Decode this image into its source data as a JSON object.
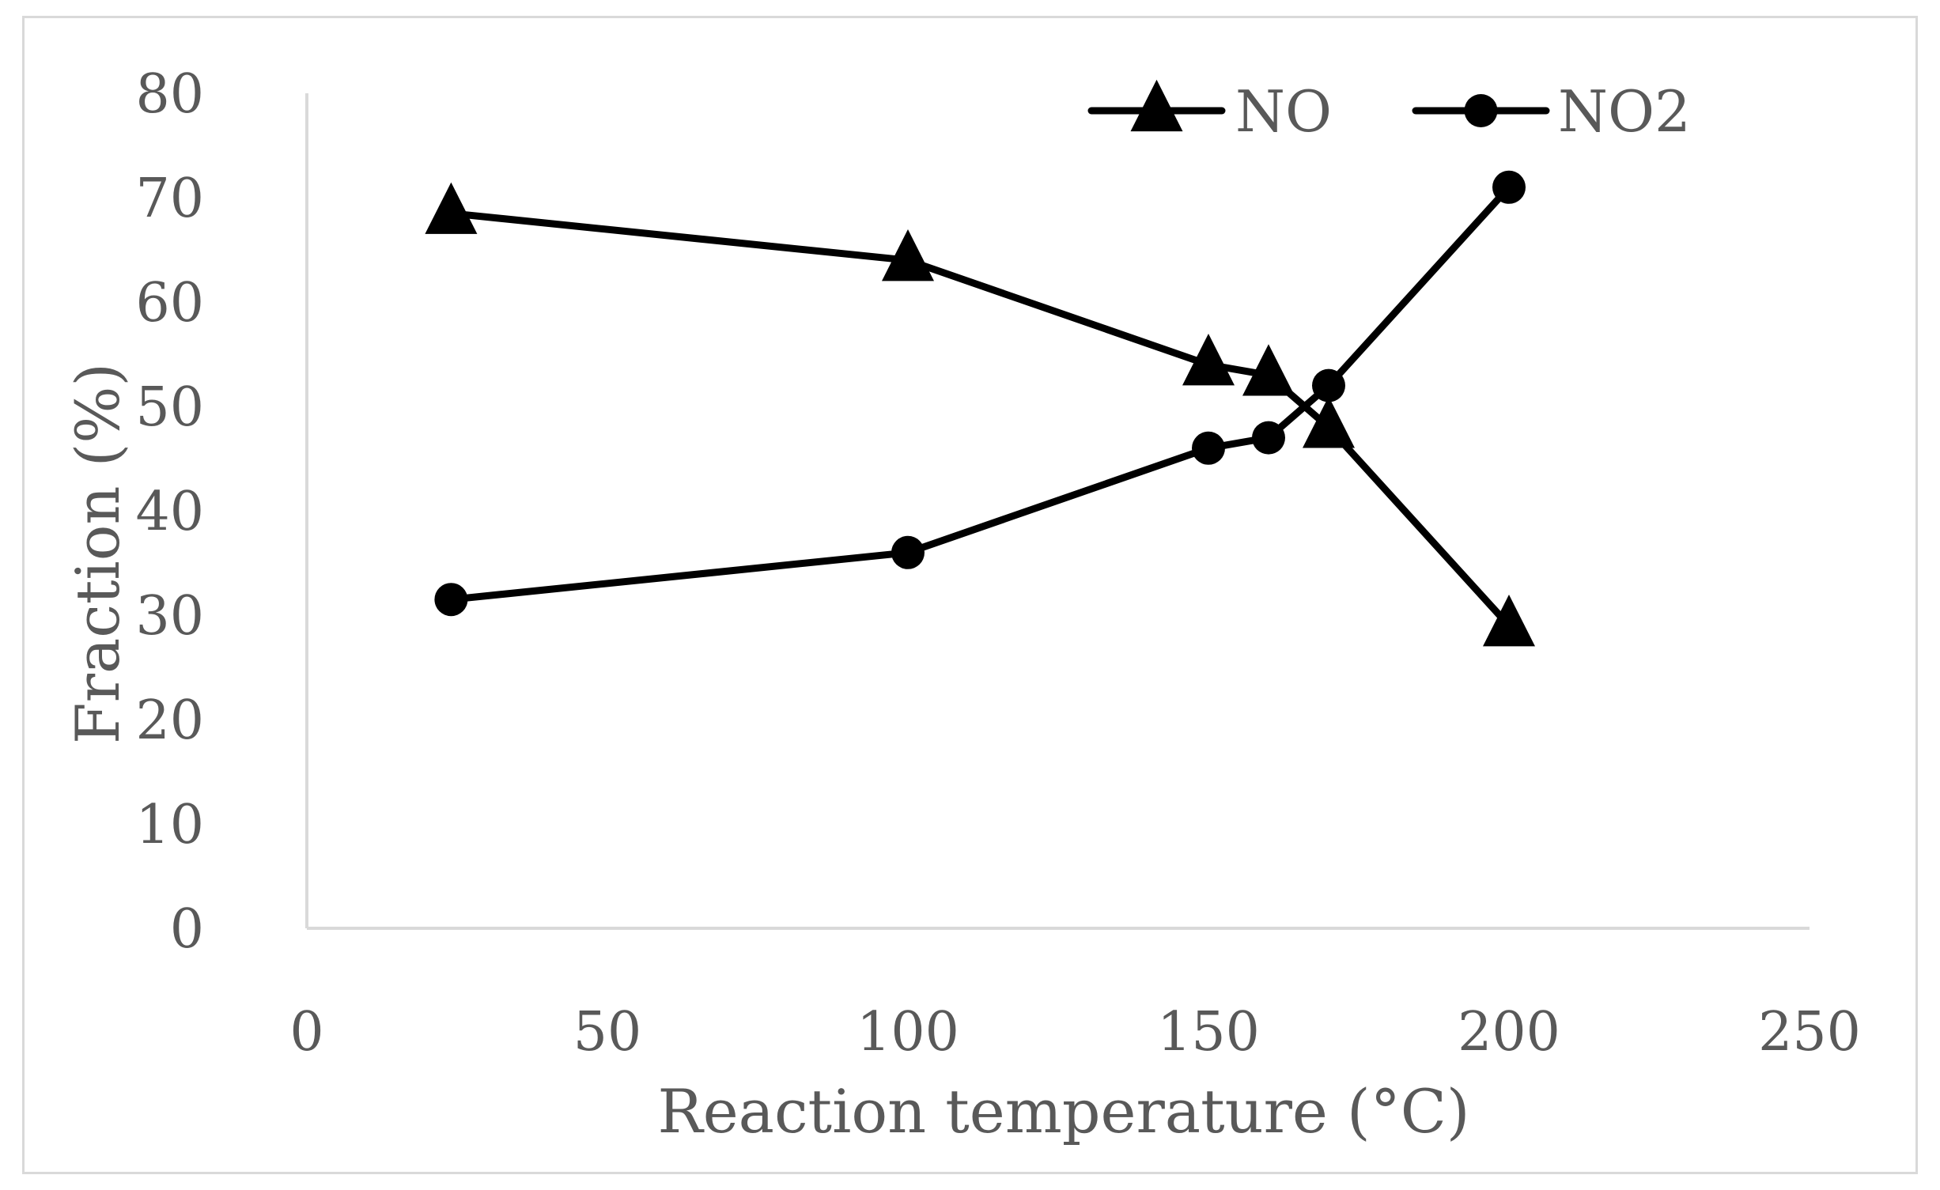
{
  "chart_data": {
    "type": "line",
    "title": "",
    "xlabel": "Reaction temperature (°C)",
    "ylabel": "Fraction (%)",
    "xlim": [
      0,
      250
    ],
    "ylim": [
      0,
      80
    ],
    "xticks": [
      0,
      50,
      100,
      150,
      200,
      250
    ],
    "yticks": [
      0,
      10,
      20,
      30,
      40,
      50,
      60,
      70,
      80
    ],
    "grid": false,
    "legend_position": "top-right",
    "series": [
      {
        "name": "NO",
        "marker": "triangle",
        "color": "#000000",
        "x": [
          24,
          100,
          150,
          160,
          170,
          200
        ],
        "values": [
          68.5,
          64,
          54,
          53,
          48,
          29
        ]
      },
      {
        "name": "NO2",
        "marker": "circle",
        "color": "#000000",
        "x": [
          24,
          100,
          150,
          160,
          170,
          200
        ],
        "values": [
          31.5,
          36,
          46,
          47,
          52,
          71
        ]
      }
    ]
  },
  "colors": {
    "axis": "#d9d9d9",
    "text": "#595959",
    "series": "#000000"
  }
}
